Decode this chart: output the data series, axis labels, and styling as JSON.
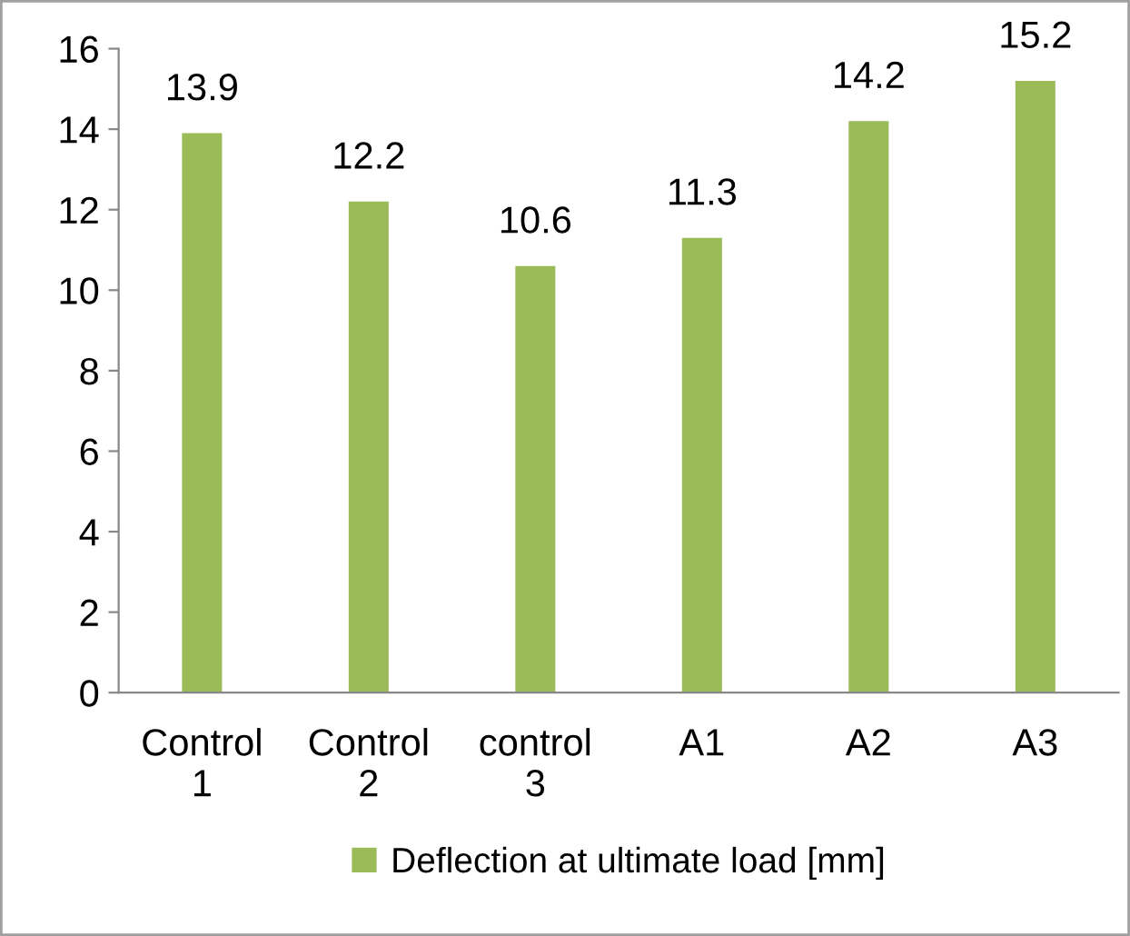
{
  "chart_data": {
    "type": "bar",
    "categories": [
      "Control 1",
      "Control 2",
      "control 3",
      "A1",
      "A2",
      "A3"
    ],
    "series": [
      {
        "name": "Deflection at ultimate load [mm]",
        "color": "#9bbb59",
        "values": [
          13.9,
          12.2,
          10.6,
          11.3,
          14.2,
          15.2
        ]
      }
    ],
    "ylim": [
      0,
      16
    ],
    "yticks": [
      0,
      2,
      4,
      6,
      8,
      10,
      12,
      14,
      16
    ],
    "data_labels": true,
    "legend": "bottom",
    "grid": false
  }
}
